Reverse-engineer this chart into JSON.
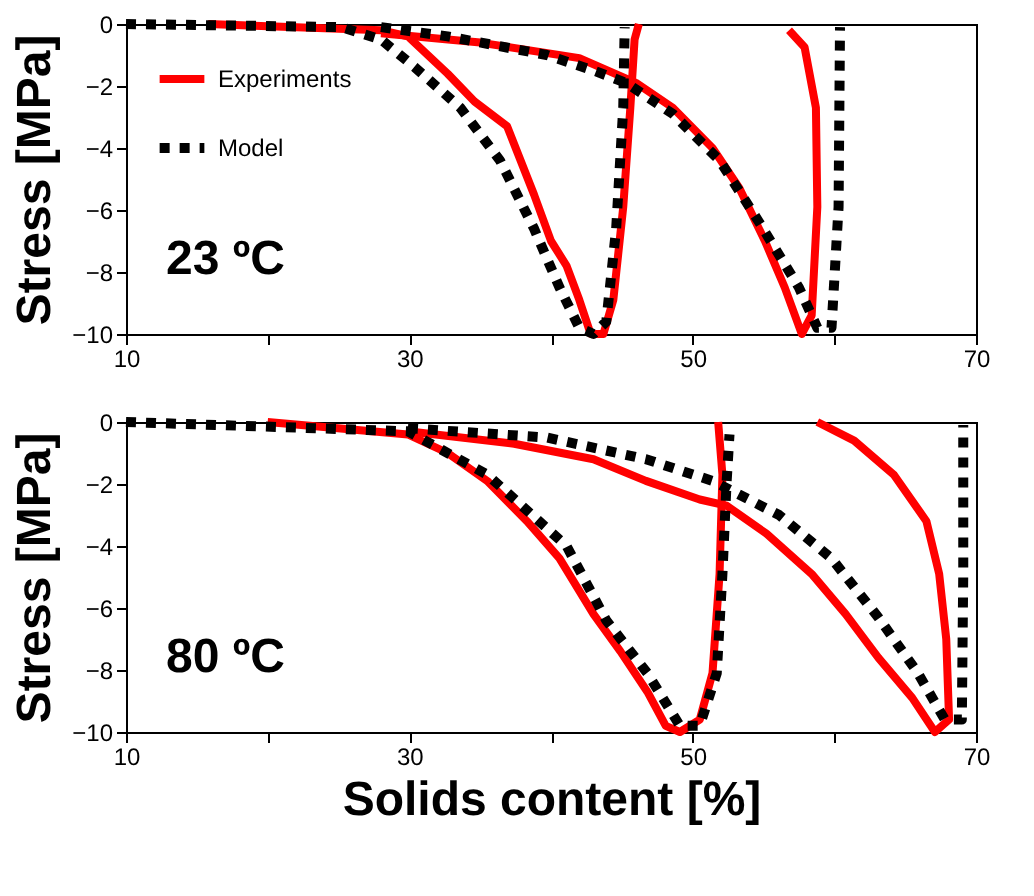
{
  "chart_data": [
    {
      "type": "line",
      "ylabel": "Stress [MPa]",
      "annotations": [
        "23 ºC"
      ],
      "xlim": [
        10,
        70
      ],
      "xticks": [
        10,
        {
          "value": 20,
          "label": null
        },
        30,
        {
          "value": 40,
          "label": null
        },
        50,
        {
          "value": 60,
          "label": null
        },
        70
      ],
      "ylim": [
        -10,
        0
      ],
      "yticks": [
        -10,
        -8,
        -6,
        -4,
        -2,
        0
      ],
      "grid": false,
      "legend": "top left",
      "marker": "none",
      "series": [
        {
          "name": "Experiments",
          "color": "#ff0000",
          "line_style": "solid",
          "x": [
            15.8,
            28,
            29.9,
            32.7,
            34.6,
            36.9,
            38.8,
            40,
            41.1,
            42,
            42.8,
            43.7,
            44.4,
            45.1,
            45.6,
            45.9,
            46.2,
            null,
            28,
            35,
            42,
            46,
            48.6,
            51.4,
            53.3,
            55.1,
            56.5,
            57.7,
            58.4,
            58.8,
            58.7,
            57.9,
            56.8
          ],
          "values": [
            0,
            -0.2,
            -0.4,
            -1.6,
            -2.5,
            -3.3,
            -5.5,
            -7.0,
            -7.8,
            -8.9,
            -10,
            -10,
            -8.9,
            -5.9,
            -2.7,
            -0.5,
            0,
            null,
            -0.3,
            -0.6,
            -1.1,
            -1.9,
            -2.7,
            -4,
            -5.3,
            -7,
            -8.5,
            -10,
            -9.4,
            -5.9,
            -2.7,
            -0.75,
            -0.2
          ]
        },
        {
          "name": "Model",
          "color": "#000000",
          "line_style": "dotted",
          "x": [
            10,
            25.2,
            28,
            30.4,
            33.6,
            36.4,
            38.8,
            40.6,
            42,
            43,
            43.9,
            44.6,
            45.1,
            45.2,
            null,
            28,
            32.7,
            39.7,
            43,
            45.3,
            48.6,
            51.9,
            54.7,
            57.5,
            58.8,
            59.8,
            60.3,
            60.4
          ],
          "values": [
            0,
            -0.1,
            -0.5,
            -1.4,
            -2.7,
            -4.4,
            -6.6,
            -8.5,
            -9.8,
            -10,
            -9.6,
            -6.6,
            -2.7,
            -0.1,
            null,
            -0.1,
            -0.4,
            -1,
            -1.5,
            -1.9,
            -2.9,
            -4.4,
            -6.4,
            -8.5,
            -9.8,
            -9.8,
            -5.9,
            -0.1
          ]
        }
      ]
    },
    {
      "type": "line",
      "ylabel": "Stress [MPa]",
      "xlabel": "Solids content [%]",
      "annotations": [
        "80 ºC"
      ],
      "xlim": [
        10,
        70
      ],
      "xticks": [
        10,
        {
          "value": 20,
          "label": null
        },
        30,
        {
          "value": 40,
          "label": null
        },
        50,
        {
          "value": 60,
          "label": null
        },
        70
      ],
      "ylim": [
        -10,
        0
      ],
      "yticks": [
        -10,
        -8,
        -6,
        -4,
        -2,
        0
      ],
      "grid": false,
      "legend": false,
      "marker": "none",
      "series": [
        {
          "name": "Experiments",
          "color": "#ff0000",
          "line_style": "solid",
          "x": [
            20,
            29.9,
            32.7,
            35.5,
            38.3,
            40.6,
            43,
            44.9,
            46.8,
            48.1,
            49.1,
            50.5,
            51.4,
            51.9,
            52.1,
            51.8,
            null,
            29.9,
            37.4,
            43,
            46.7,
            50.5,
            52.4,
            55.2,
            58.4,
            60.8,
            63.1,
            65.5,
            67.1,
            68.1,
            67.9,
            67.4,
            66.5,
            64.2,
            61.4,
            58.8
          ],
          "values": [
            0,
            -0.4,
            -1,
            -1.9,
            -3.2,
            -4.4,
            -6.2,
            -7.4,
            -8.7,
            -9.8,
            -10,
            -9.6,
            -8.1,
            -4.9,
            -1.7,
            0,
            null,
            -0.3,
            -0.7,
            -1.2,
            -1.9,
            -2.5,
            -2.7,
            -3.6,
            -4.9,
            -6.2,
            -7.6,
            -8.9,
            -10,
            -9.6,
            -7,
            -4.9,
            -3.2,
            -1.7,
            -0.6,
            0
          ]
        },
        {
          "name": "Model",
          "color": "#000000",
          "line_style": "dotted",
          "x": [
            10,
            29.9,
            35.5,
            41.1,
            43.9,
            46.8,
            49.1,
            50.5,
            51.7,
            52.1,
            52.4,
            52.6,
            null,
            29.9,
            39.7,
            46.7,
            51.4,
            56.1,
            59.8,
            63.1,
            65.9,
            67.8,
            69,
            69.1,
            69.1
          ],
          "values": [
            0,
            -0.3,
            -1.7,
            -4,
            -6.4,
            -8.1,
            -9.8,
            -9.8,
            -8.1,
            -4.9,
            -1.9,
            -0.4,
            null,
            -0.2,
            -0.5,
            -1.2,
            -1.9,
            -3,
            -4.4,
            -6.3,
            -8.1,
            -9.6,
            -9.6,
            -4.9,
            -0.1
          ]
        }
      ]
    }
  ]
}
